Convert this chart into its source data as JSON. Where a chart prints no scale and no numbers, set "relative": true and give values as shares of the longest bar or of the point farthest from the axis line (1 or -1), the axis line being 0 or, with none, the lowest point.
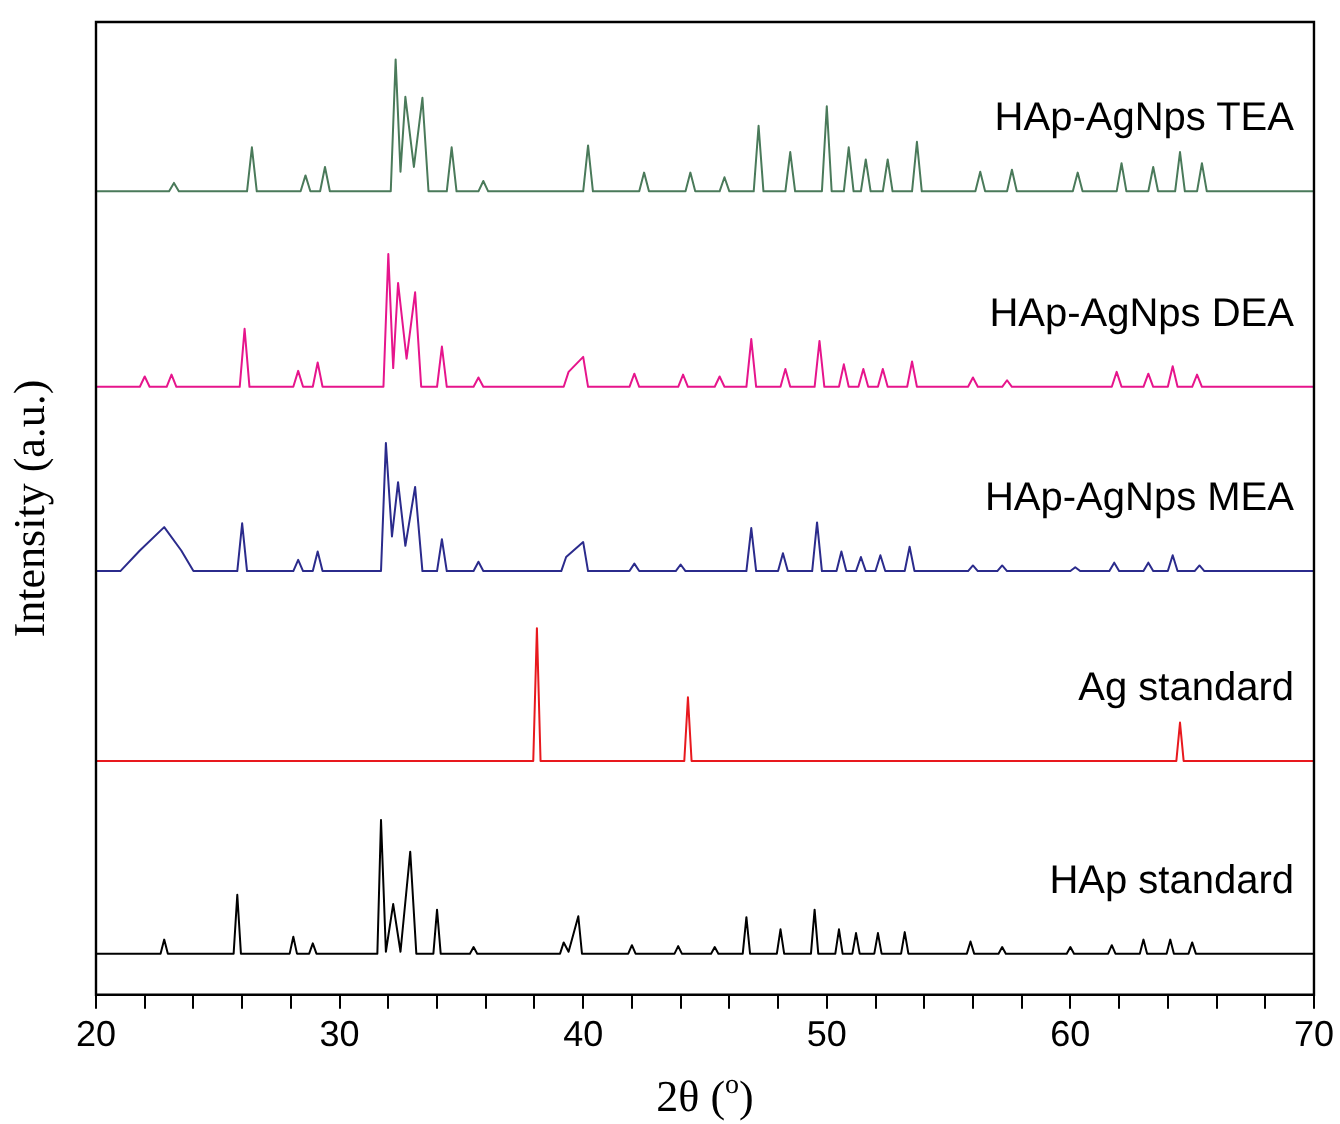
{
  "chart_data": {
    "type": "line",
    "xlabel": "2θ ($^{o}$)",
    "ylabel": "Intensity (a.u.)",
    "relative": true,
    "marker": "none",
    "tick_labels": "x",
    "xlim": [
      20,
      70
    ],
    "xticks": [
      20,
      {
        "value": 22,
        "label": null
      },
      {
        "value": 24,
        "label": null
      },
      {
        "value": 26,
        "label": null
      },
      {
        "value": 28,
        "label": null
      },
      30,
      {
        "value": 32,
        "label": null
      },
      {
        "value": 34,
        "label": null
      },
      {
        "value": 36,
        "label": null
      },
      {
        "value": 38,
        "label": null
      },
      40,
      {
        "value": 42,
        "label": null
      },
      {
        "value": 44,
        "label": null
      },
      {
        "value": 46,
        "label": null
      },
      {
        "value": 48,
        "label": null
      },
      50,
      {
        "value": 52,
        "label": null
      },
      {
        "value": 54,
        "label": null
      },
      {
        "value": 56,
        "label": null
      },
      {
        "value": 58,
        "label": null
      },
      60,
      {
        "value": 62,
        "label": null
      },
      {
        "value": 64,
        "label": null
      },
      {
        "value": 66,
        "label": null
      },
      {
        "value": 68,
        "label": null
      },
      70
    ],
    "series": [
      {
        "name": "HAp-AgNps TEA",
        "color": "#4a7a5a",
        "x": [
          20,
          23.0,
          23.2,
          23.4,
          26.2,
          26.4,
          26.6,
          28.4,
          28.6,
          28.8,
          29.2,
          29.4,
          29.6,
          32.1,
          32.3,
          32.5,
          32.7,
          33.05,
          33.4,
          33.65,
          34.4,
          34.6,
          34.8,
          35.7,
          35.9,
          36.1,
          40.0,
          40.2,
          40.4,
          42.3,
          42.5,
          42.7,
          44.2,
          44.4,
          44.6,
          45.6,
          45.8,
          46.0,
          47.0,
          47.2,
          47.4,
          48.3,
          48.5,
          48.7,
          49.8,
          50.0,
          50.2,
          50.7,
          50.9,
          51.1,
          51.4,
          51.6,
          51.8,
          52.3,
          52.5,
          52.7,
          53.5,
          53.7,
          53.9,
          56.1,
          56.3,
          56.5,
          57.4,
          57.6,
          57.8,
          60.1,
          60.3,
          60.5,
          61.9,
          62.1,
          62.3,
          63.2,
          63.4,
          63.6,
          64.3,
          64.5,
          64.7,
          65.2,
          65.4,
          65.6,
          70
        ],
        "values": [
          0.859,
          0.859,
          0.868,
          0.859,
          0.859,
          0.906,
          0.859,
          0.859,
          0.876,
          0.859,
          0.859,
          0.885,
          0.859,
          0.859,
          1.0,
          0.88,
          0.96,
          0.885,
          0.959,
          0.859,
          0.859,
          0.906,
          0.859,
          0.859,
          0.87,
          0.859,
          0.859,
          0.908,
          0.859,
          0.859,
          0.879,
          0.859,
          0.859,
          0.879,
          0.859,
          0.859,
          0.874,
          0.859,
          0.859,
          0.929,
          0.859,
          0.859,
          0.901,
          0.859,
          0.859,
          0.95,
          0.859,
          0.859,
          0.906,
          0.859,
          0.859,
          0.893,
          0.859,
          0.859,
          0.893,
          0.859,
          0.859,
          0.912,
          0.859,
          0.859,
          0.88,
          0.859,
          0.859,
          0.882,
          0.859,
          0.859,
          0.879,
          0.859,
          0.859,
          0.889,
          0.859,
          0.859,
          0.885,
          0.859,
          0.859,
          0.901,
          0.859,
          0.859,
          0.889,
          0.859,
          0.859
        ]
      },
      {
        "name": "HAp-AgNps DEA",
        "color": "#e6158c",
        "x": [
          20,
          21.8,
          22.0,
          22.2,
          22.9,
          23.1,
          23.3,
          25.9,
          26.1,
          26.3,
          28.1,
          28.3,
          28.5,
          28.9,
          29.1,
          29.3,
          31.8,
          32.0,
          32.2,
          32.4,
          32.75,
          33.1,
          33.35,
          34.0,
          34.2,
          34.4,
          35.5,
          35.7,
          35.9,
          39.2,
          39.4,
          40.0,
          40.2,
          41.9,
          42.1,
          42.3,
          43.9,
          44.1,
          44.3,
          45.4,
          45.6,
          45.8,
          46.7,
          46.9,
          47.1,
          48.1,
          48.3,
          48.5,
          49.5,
          49.7,
          49.9,
          50.5,
          50.7,
          50.9,
          51.3,
          51.5,
          51.7,
          52.1,
          52.3,
          52.5,
          53.3,
          53.5,
          53.7,
          55.8,
          56.0,
          56.2,
          57.2,
          57.4,
          57.6,
          61.7,
          61.9,
          62.1,
          63.0,
          63.2,
          63.4,
          64.0,
          64.2,
          64.4,
          65.0,
          65.2,
          65.4,
          70
        ],
        "values": [
          0.65,
          0.65,
          0.661,
          0.65,
          0.65,
          0.663,
          0.65,
          0.65,
          0.712,
          0.65,
          0.65,
          0.667,
          0.65,
          0.65,
          0.676,
          0.65,
          0.65,
          0.792,
          0.67,
          0.761,
          0.68,
          0.751,
          0.65,
          0.65,
          0.693,
          0.65,
          0.65,
          0.66,
          0.65,
          0.65,
          0.666,
          0.682,
          0.65,
          0.65,
          0.664,
          0.65,
          0.65,
          0.663,
          0.65,
          0.65,
          0.661,
          0.65,
          0.65,
          0.701,
          0.65,
          0.65,
          0.669,
          0.65,
          0.65,
          0.699,
          0.65,
          0.65,
          0.674,
          0.65,
          0.65,
          0.669,
          0.65,
          0.65,
          0.669,
          0.65,
          0.65,
          0.677,
          0.65,
          0.65,
          0.66,
          0.65,
          0.65,
          0.657,
          0.65,
          0.65,
          0.666,
          0.65,
          0.65,
          0.664,
          0.65,
          0.65,
          0.672,
          0.65,
          0.65,
          0.663,
          0.65,
          0.65
        ]
      },
      {
        "name": "HAp-AgNps MEA",
        "color": "#2b2b8c",
        "x": [
          20,
          21.0,
          21.8,
          22.8,
          23.5,
          24.0,
          25.8,
          26.0,
          26.2,
          28.1,
          28.3,
          28.5,
          28.9,
          29.1,
          29.3,
          31.7,
          31.9,
          32.15,
          32.4,
          32.7,
          33.1,
          33.4,
          34.0,
          34.2,
          34.4,
          35.5,
          35.7,
          35.9,
          39.1,
          39.3,
          40.0,
          40.2,
          41.9,
          42.1,
          42.3,
          43.8,
          44.0,
          44.2,
          46.7,
          46.9,
          47.1,
          48.0,
          48.2,
          48.4,
          49.4,
          49.6,
          49.8,
          50.4,
          50.6,
          50.8,
          51.2,
          51.4,
          51.6,
          52.0,
          52.2,
          52.4,
          53.2,
          53.4,
          53.6,
          55.8,
          56.0,
          56.2,
          57.0,
          57.2,
          57.4,
          60.0,
          60.2,
          60.4,
          61.6,
          61.8,
          62.0,
          63.0,
          63.2,
          63.4,
          64.0,
          64.2,
          64.4,
          65.1,
          65.3,
          65.5,
          70
        ],
        "values": [
          0.453,
          0.453,
          0.475,
          0.5,
          0.475,
          0.453,
          0.453,
          0.504,
          0.453,
          0.453,
          0.465,
          0.453,
          0.453,
          0.474,
          0.453,
          0.453,
          0.59,
          0.49,
          0.548,
          0.48,
          0.543,
          0.453,
          0.453,
          0.487,
          0.453,
          0.453,
          0.463,
          0.453,
          0.453,
          0.468,
          0.484,
          0.453,
          0.453,
          0.461,
          0.453,
          0.453,
          0.46,
          0.453,
          0.453,
          0.499,
          0.453,
          0.453,
          0.472,
          0.453,
          0.453,
          0.505,
          0.453,
          0.453,
          0.474,
          0.453,
          0.453,
          0.468,
          0.453,
          0.453,
          0.47,
          0.453,
          0.453,
          0.479,
          0.453,
          0.453,
          0.459,
          0.453,
          0.453,
          0.459,
          0.453,
          0.453,
          0.457,
          0.453,
          0.453,
          0.462,
          0.453,
          0.453,
          0.462,
          0.453,
          0.453,
          0.47,
          0.453,
          0.453,
          0.459,
          0.453,
          0.453
        ]
      },
      {
        "name": "Ag standard",
        "color": "#e8191e",
        "x": [
          20,
          37.95,
          38.1,
          38.25,
          44.15,
          44.3,
          44.45,
          64.35,
          64.5,
          64.65,
          70
        ],
        "values": [
          0.25,
          0.25,
          0.392,
          0.25,
          0.25,
          0.318,
          0.25,
          0.25,
          0.291,
          0.25,
          0.25
        ]
      },
      {
        "name": "HAp standard",
        "color": "#000000",
        "x": [
          20,
          22.65,
          22.8,
          22.95,
          25.65,
          25.8,
          25.95,
          27.95,
          28.1,
          28.25,
          28.75,
          28.9,
          29.05,
          31.55,
          31.7,
          31.9,
          32.2,
          32.5,
          32.9,
          33.15,
          33.85,
          34.0,
          34.15,
          35.35,
          35.5,
          35.65,
          39.05,
          39.2,
          39.4,
          39.8,
          39.95,
          41.85,
          42.0,
          42.15,
          43.75,
          43.9,
          44.05,
          45.25,
          45.4,
          45.55,
          46.55,
          46.7,
          46.85,
          47.95,
          48.1,
          48.25,
          49.35,
          49.5,
          49.65,
          50.35,
          50.5,
          50.65,
          51.05,
          51.2,
          51.35,
          51.95,
          52.1,
          52.25,
          53.05,
          53.2,
          53.35,
          55.75,
          55.9,
          56.05,
          57.05,
          57.2,
          57.35,
          59.85,
          60.0,
          60.15,
          61.55,
          61.7,
          61.85,
          62.85,
          63.0,
          63.15,
          63.95,
          64.1,
          64.25,
          64.85,
          65.0,
          65.15,
          70
        ],
        "values": [
          0.044,
          0.044,
          0.059,
          0.044,
          0.044,
          0.107,
          0.044,
          0.044,
          0.062,
          0.044,
          0.044,
          0.055,
          0.044,
          0.044,
          0.187,
          0.046,
          0.097,
          0.046,
          0.153,
          0.044,
          0.044,
          0.091,
          0.044,
          0.044,
          0.051,
          0.044,
          0.044,
          0.056,
          0.046,
          0.084,
          0.044,
          0.044,
          0.053,
          0.044,
          0.044,
          0.052,
          0.044,
          0.044,
          0.051,
          0.044,
          0.044,
          0.083,
          0.044,
          0.044,
          0.07,
          0.044,
          0.044,
          0.091,
          0.044,
          0.044,
          0.07,
          0.044,
          0.044,
          0.066,
          0.044,
          0.044,
          0.066,
          0.044,
          0.044,
          0.067,
          0.044,
          0.044,
          0.057,
          0.044,
          0.044,
          0.051,
          0.044,
          0.044,
          0.051,
          0.044,
          0.044,
          0.053,
          0.044,
          0.044,
          0.059,
          0.044,
          0.044,
          0.059,
          0.044,
          0.044,
          0.056,
          0.044,
          0.044
        ]
      }
    ]
  }
}
